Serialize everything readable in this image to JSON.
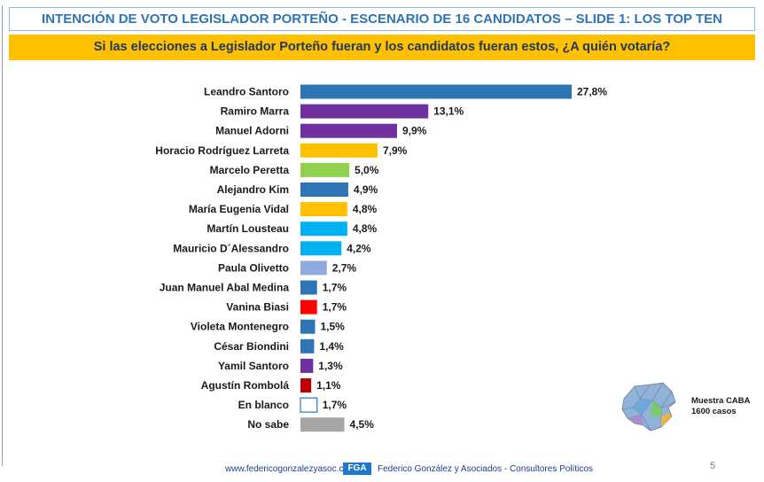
{
  "title": "INTENCIÓN DE VOTO LEGISLADOR PORTEÑO - ESCENARIO DE 16 CANDIDATOS –  SLIDE 1: LOS TOP TEN",
  "question": "Si las elecciones a Legislador Porteño fueran y los candidatos fueran estos, ¿A quién votaría?",
  "sample": {
    "line1": "Muestra CABA",
    "line2": "1600 casos"
  },
  "footer": {
    "url": "www.federicogonzalezyasoc.com.ar",
    "logo": "FGA",
    "firm": "Federico González y Asociados - Consultores Políticos"
  },
  "page_number": "5",
  "chart_data": {
    "type": "bar",
    "orientation": "horizontal",
    "categories": [
      "Leandro Santoro",
      "Ramiro Marra",
      "Manuel Adorni",
      "Horacio Rodríguez Larreta",
      "Marcelo Peretta",
      "Alejandro Kim",
      "María Eugenia Vidal",
      "Martín Lousteau",
      "Mauricio D´Alessandro",
      "Paula Olivetto",
      "Juan Manuel Abal Medina",
      "Vanina Biasi",
      "Violeta Montenegro",
      "César Biondini",
      "Yamil Santoro",
      "Agustín Rombolá",
      "En blanco",
      "No sabe"
    ],
    "values": [
      27.8,
      13.1,
      9.9,
      7.9,
      5.0,
      4.9,
      4.8,
      4.8,
      4.2,
      2.7,
      1.7,
      1.7,
      1.5,
      1.4,
      1.3,
      1.1,
      1.7,
      4.5
    ],
    "value_labels": [
      "27,8%",
      "13,1%",
      "9,9%",
      "7,9%",
      "5,0%",
      "4,9%",
      "4,8%",
      "4,8%",
      "4,2%",
      "2,7%",
      "1,7%",
      "1,7%",
      "1,5%",
      "1,4%",
      "1,3%",
      "1,1%",
      "1,7%",
      "4,5%"
    ],
    "colors": [
      "#2e75b6",
      "#7030a0",
      "#7030a0",
      "#ffc000",
      "#92d050",
      "#2e75b6",
      "#ffc000",
      "#00b0f0",
      "#00b0f0",
      "#8faadc",
      "#2e75b6",
      "#ff0000",
      "#2e75b6",
      "#2e75b6",
      "#7030a0",
      "#c00000",
      "#ffffff",
      "#a6a6a6"
    ],
    "outlined": [
      false,
      false,
      false,
      false,
      false,
      false,
      false,
      false,
      false,
      false,
      false,
      false,
      false,
      false,
      false,
      false,
      true,
      false
    ],
    "xlim": [
      0,
      30
    ],
    "grid": false,
    "legend": "none"
  }
}
